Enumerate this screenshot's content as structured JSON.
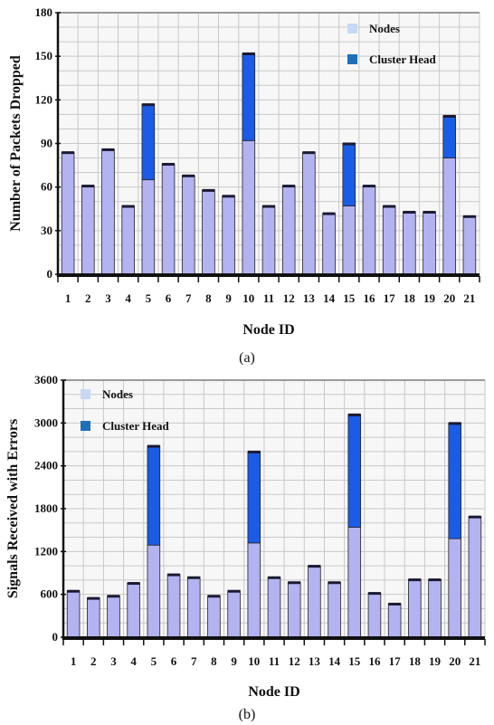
{
  "colors": {
    "nodes_fill": "#b3b3f2",
    "cluster_head_fill": "#1a5ce6",
    "nodes_legend": "#c7d9f2",
    "cluster_head_legend": "#1f6fb8",
    "grid": "#c8c8c8",
    "plot_bg": "#f7f7f7"
  },
  "chart_data": [
    {
      "type": "bar",
      "stacked": true,
      "categories": [
        "1",
        "2",
        "3",
        "4",
        "5",
        "6",
        "7",
        "8",
        "9",
        "10",
        "11",
        "12",
        "13",
        "14",
        "15",
        "16",
        "17",
        "18",
        "19",
        "20",
        "21"
      ],
      "series": [
        {
          "name": "Nodes",
          "values": [
            84,
            61,
            86,
            47,
            65,
            76,
            68,
            58,
            54,
            92,
            47,
            61,
            84,
            42,
            47,
            61,
            47,
            43,
            43,
            80,
            40
          ]
        },
        {
          "name": "Cluster Head",
          "values": [
            0,
            0,
            0,
            0,
            52,
            0,
            0,
            0,
            0,
            60,
            0,
            0,
            0,
            0,
            43,
            0,
            0,
            0,
            0,
            29,
            0
          ]
        }
      ],
      "xlabel": "Node ID",
      "ylabel": "Number of Packets Dropped",
      "ylim": [
        0,
        180
      ],
      "yticks": [
        0,
        30,
        60,
        90,
        120,
        150,
        180
      ],
      "grid": true,
      "legend": "top-right",
      "caption": "(a)"
    },
    {
      "type": "bar",
      "stacked": true,
      "categories": [
        "1",
        "2",
        "3",
        "4",
        "5",
        "6",
        "7",
        "8",
        "9",
        "10",
        "11",
        "12",
        "13",
        "14",
        "15",
        "16",
        "17",
        "18",
        "19",
        "20",
        "21"
      ],
      "series": [
        {
          "name": "Nodes",
          "values": [
            650,
            550,
            580,
            760,
            1290,
            880,
            840,
            580,
            650,
            1320,
            840,
            770,
            1000,
            770,
            1540,
            620,
            470,
            810,
            810,
            1380,
            1690
          ]
        },
        {
          "name": "Cluster Head",
          "values": [
            0,
            0,
            0,
            0,
            1390,
            0,
            0,
            0,
            0,
            1280,
            0,
            0,
            0,
            0,
            1580,
            0,
            0,
            0,
            0,
            1620,
            0
          ]
        }
      ],
      "xlabel": "Node ID",
      "ylabel": "Signals Received with Errors",
      "ylim": [
        0,
        3600
      ],
      "yticks": [
        0,
        600,
        1200,
        1800,
        2400,
        3000,
        3600
      ],
      "grid": true,
      "legend": "top-left",
      "caption": "(b)"
    }
  ]
}
